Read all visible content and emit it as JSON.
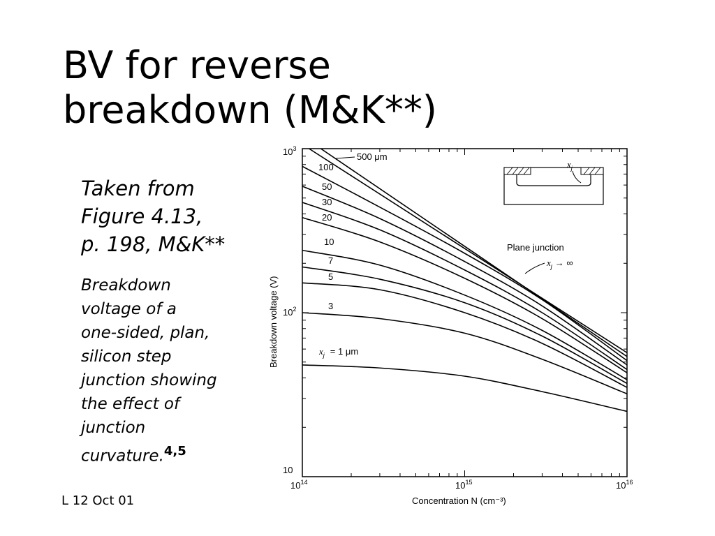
{
  "slide": {
    "title_line1": "BV for reverse",
    "title_line2": "breakdown (M&K**)",
    "caption_line1": "Taken from",
    "caption_line2": "Figure 4.13,",
    "caption_line3": "p. 198, M&K**",
    "sub_lines": [
      "Breakdown",
      "voltage of a",
      "one-sided, plan,",
      "silicon step",
      "junction showing",
      "the effect of",
      "junction"
    ],
    "sub_last": "curvature.",
    "sub_ref": "4,5",
    "footer": "L 12 Oct 01"
  },
  "chart_data": {
    "type": "line",
    "xlabel": "Concentration N (cm⁻³)",
    "ylabel": "Breakdown voltage (V)",
    "x_scale": "log",
    "y_scale": "log",
    "xlim": [
      100000000000000.0,
      1e+16
    ],
    "ylim": [
      10,
      1000
    ],
    "x_ticks": [
      {
        "base": "10",
        "exp": "14"
      },
      {
        "base": "10",
        "exp": "15"
      },
      {
        "base": "10",
        "exp": "16"
      }
    ],
    "y_ticks": [
      {
        "base": "10",
        "exp": "3"
      },
      {
        "base": "10",
        "exp": "2"
      },
      {
        "base": "10",
        "exp": ""
      }
    ],
    "inset": {
      "label": "x",
      "sub": "j"
    },
    "annotations": {
      "plane_junction": "Plane junction",
      "xj_infinity": "→ ∞",
      "xj_1um": "= 1 μm",
      "um500": "500 μm",
      "xj": "x",
      "xj_sub": "j"
    },
    "series": [
      {
        "name": "Plane junction",
        "x": [
          110000000000000.0,
          1e+16
        ],
        "y": [
          1000,
          57
        ]
      },
      {
        "name": "500 μm",
        "x": [
          130000000000000.0,
          1e+16
        ],
        "y": [
          1000,
          54
        ]
      },
      {
        "name": "100",
        "x": [
          100000000000000.0,
          300000000000000.0,
          1000000000000000.0,
          3000000000000000.0,
          1e+16
        ],
        "y": [
          780,
          440,
          230,
          120,
          51
        ]
      },
      {
        "name": "50",
        "x": [
          100000000000000.0,
          300000000000000.0,
          1000000000000000.0,
          3000000000000000.0,
          1e+16
        ],
        "y": [
          590,
          375,
          205,
          110,
          48
        ]
      },
      {
        "name": "30",
        "x": [
          100000000000000.0,
          300000000000000.0,
          1000000000000000.0,
          3000000000000000.0,
          1e+16
        ],
        "y": [
          470,
          320,
          182,
          100,
          45
        ]
      },
      {
        "name": "20",
        "x": [
          100000000000000.0,
          300000000000000.0,
          1000000000000000.0,
          3000000000000000.0,
          1e+16
        ],
        "y": [
          380,
          270,
          162,
          92,
          43
        ]
      },
      {
        "name": "10",
        "x": [
          100000000000000.0,
          300000000000000.0,
          1000000000000000.0,
          3000000000000000.0,
          1e+16
        ],
        "y": [
          240,
          195,
          128,
          78,
          39
        ]
      },
      {
        "name": "7",
        "x": [
          100000000000000.0,
          300000000000000.0,
          1000000000000000.0,
          3000000000000000.0,
          1e+16
        ],
        "y": [
          190,
          160,
          115,
          72,
          37
        ]
      },
      {
        "name": "5",
        "x": [
          100000000000000.0,
          300000000000000.0,
          1000000000000000.0,
          3000000000000000.0,
          1e+16
        ],
        "y": [
          152,
          138,
          100,
          65,
          35
        ]
      },
      {
        "name": "3",
        "x": [
          100000000000000.0,
          300000000000000.0,
          1000000000000000.0,
          3000000000000000.0,
          1e+16
        ],
        "y": [
          100,
          92,
          75,
          52,
          32
        ]
      },
      {
        "name": "xj = 1 μm",
        "x": [
          100000000000000.0,
          300000000000000.0,
          1000000000000000.0,
          3000000000000000.0,
          1e+16
        ],
        "y": [
          48,
          46,
          41,
          33,
          25
        ]
      }
    ]
  }
}
